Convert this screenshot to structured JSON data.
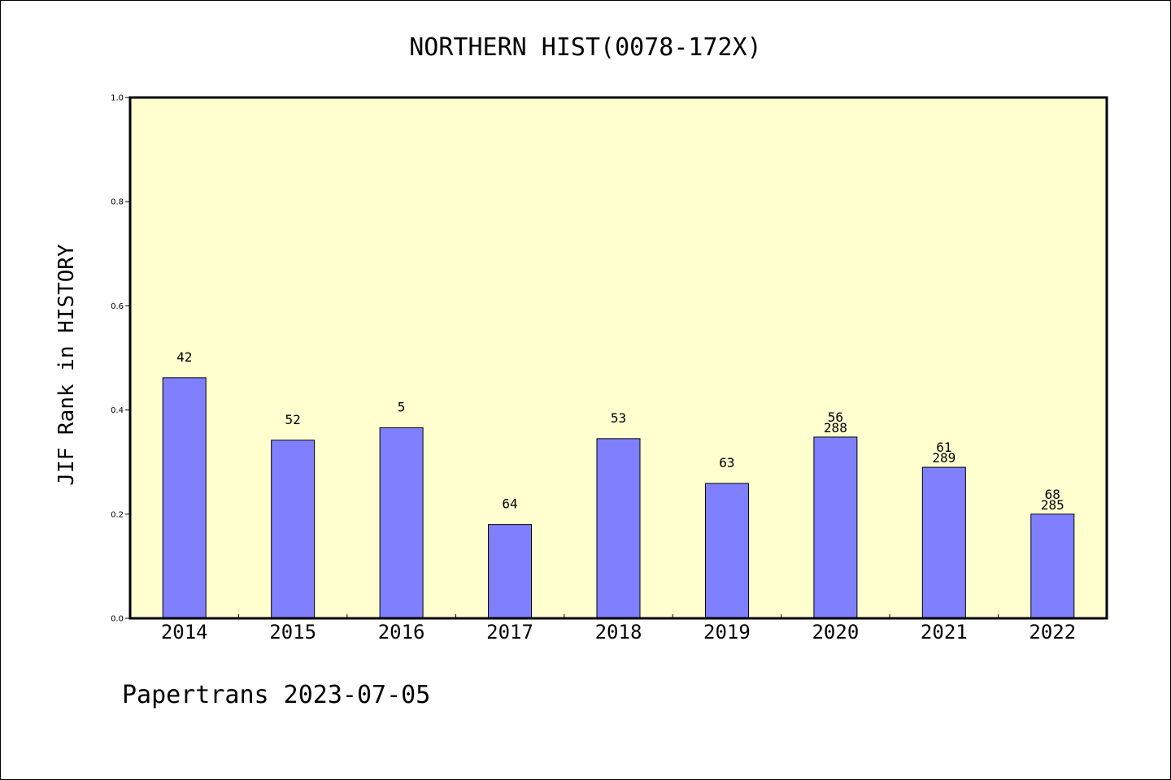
{
  "chart_data": {
    "type": "bar",
    "title": "NORTHERN HIST(0078-172X)",
    "ylabel": "JIF Rank in HISTORY",
    "xlabel": "",
    "ylim": [
      0.0,
      1.0
    ],
    "yticks": [
      "0.0",
      "0.2",
      "0.4",
      "0.6",
      "0.8",
      "1.0"
    ],
    "categories": [
      "2014",
      "2015",
      "2016",
      "2017",
      "2018",
      "2019",
      "2020",
      "2021",
      "2022"
    ],
    "values": [
      0.462,
      0.342,
      0.366,
      0.18,
      0.345,
      0.259,
      0.348,
      0.29,
      0.2
    ],
    "data_labels": [
      [
        "42"
      ],
      [
        "52"
      ],
      [
        "5"
      ],
      [
        "64"
      ],
      [
        "53"
      ],
      [
        "63"
      ],
      [
        "56",
        "288"
      ],
      [
        "61",
        "289"
      ],
      [
        "68",
        "285"
      ]
    ],
    "colors": {
      "plot_background": "#ffffd0",
      "bar_fill": "#8080ff",
      "bar_stroke": "#000000"
    },
    "grid": false,
    "legend": "none"
  },
  "footer": {
    "text": "Papertrans 2023-07-05"
  }
}
